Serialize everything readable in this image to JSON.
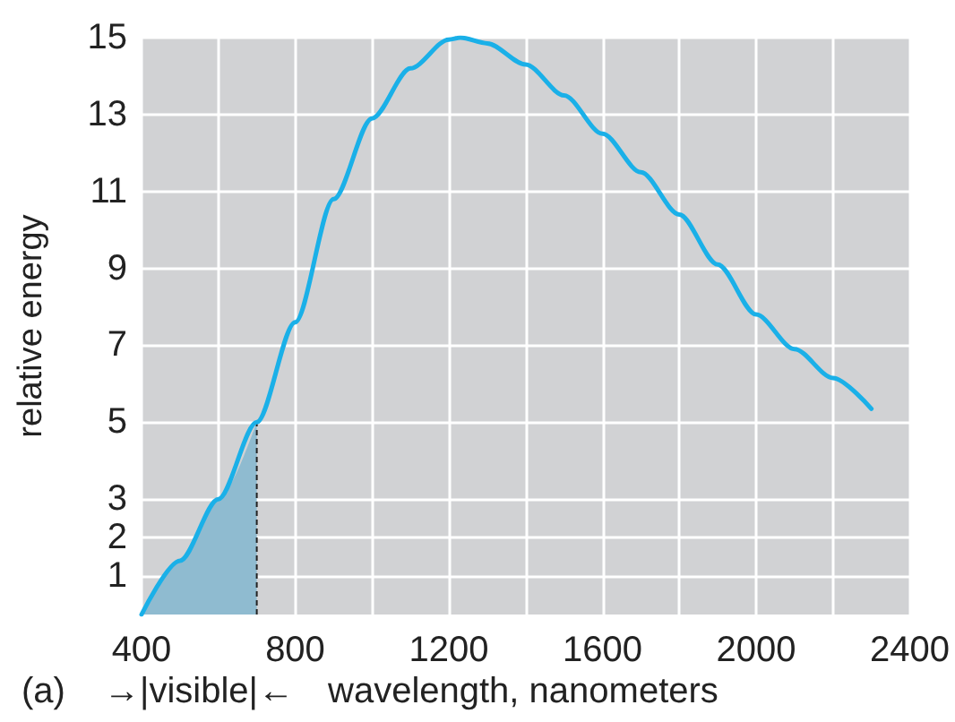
{
  "chart_data": {
    "type": "line",
    "xlabel": "wavelength, nanometers",
    "ylabel": "relative energy",
    "annotations": [
      "(a)",
      "→|visible|←"
    ],
    "xlim": [
      400,
      2400
    ],
    "ylim": [
      0,
      15
    ],
    "xticks": [
      400,
      {
        "value": 600,
        "label": null
      },
      800,
      {
        "value": 1000,
        "label": null
      },
      1200,
      {
        "value": 1400,
        "label": null
      },
      1600,
      {
        "value": 1800,
        "label": null
      },
      2000,
      {
        "value": 2200,
        "label": null
      },
      2400
    ],
    "yticks": [
      1,
      2,
      3,
      5,
      7,
      9,
      11,
      13,
      15
    ],
    "ref_lines": [
      {
        "axis": "x",
        "value": 700,
        "color": "#222222",
        "line_style": "dashed"
      }
    ],
    "grid": true,
    "marker": "none",
    "line_style": "solid",
    "series": [
      {
        "color": "#1ab0e8",
        "x": [
          400,
          500,
          600,
          700,
          800,
          900,
          1000,
          1100,
          1200,
          1230,
          1300,
          1400,
          1500,
          1600,
          1700,
          1800,
          1900,
          2000,
          2100,
          2200,
          2300
        ],
        "values": [
          0,
          1.4,
          3,
          5,
          7.6,
          10.8,
          12.9,
          14.2,
          14.95,
          15,
          14.85,
          14.3,
          13.5,
          12.5,
          11.5,
          10.4,
          9.1,
          7.8,
          6.9,
          6.15,
          5.35
        ]
      },
      {
        "type": "area",
        "color": "#8fbbd0",
        "x": [
          400,
          500,
          600,
          700
        ],
        "values": [
          0,
          1.4,
          3,
          5
        ]
      }
    ]
  }
}
